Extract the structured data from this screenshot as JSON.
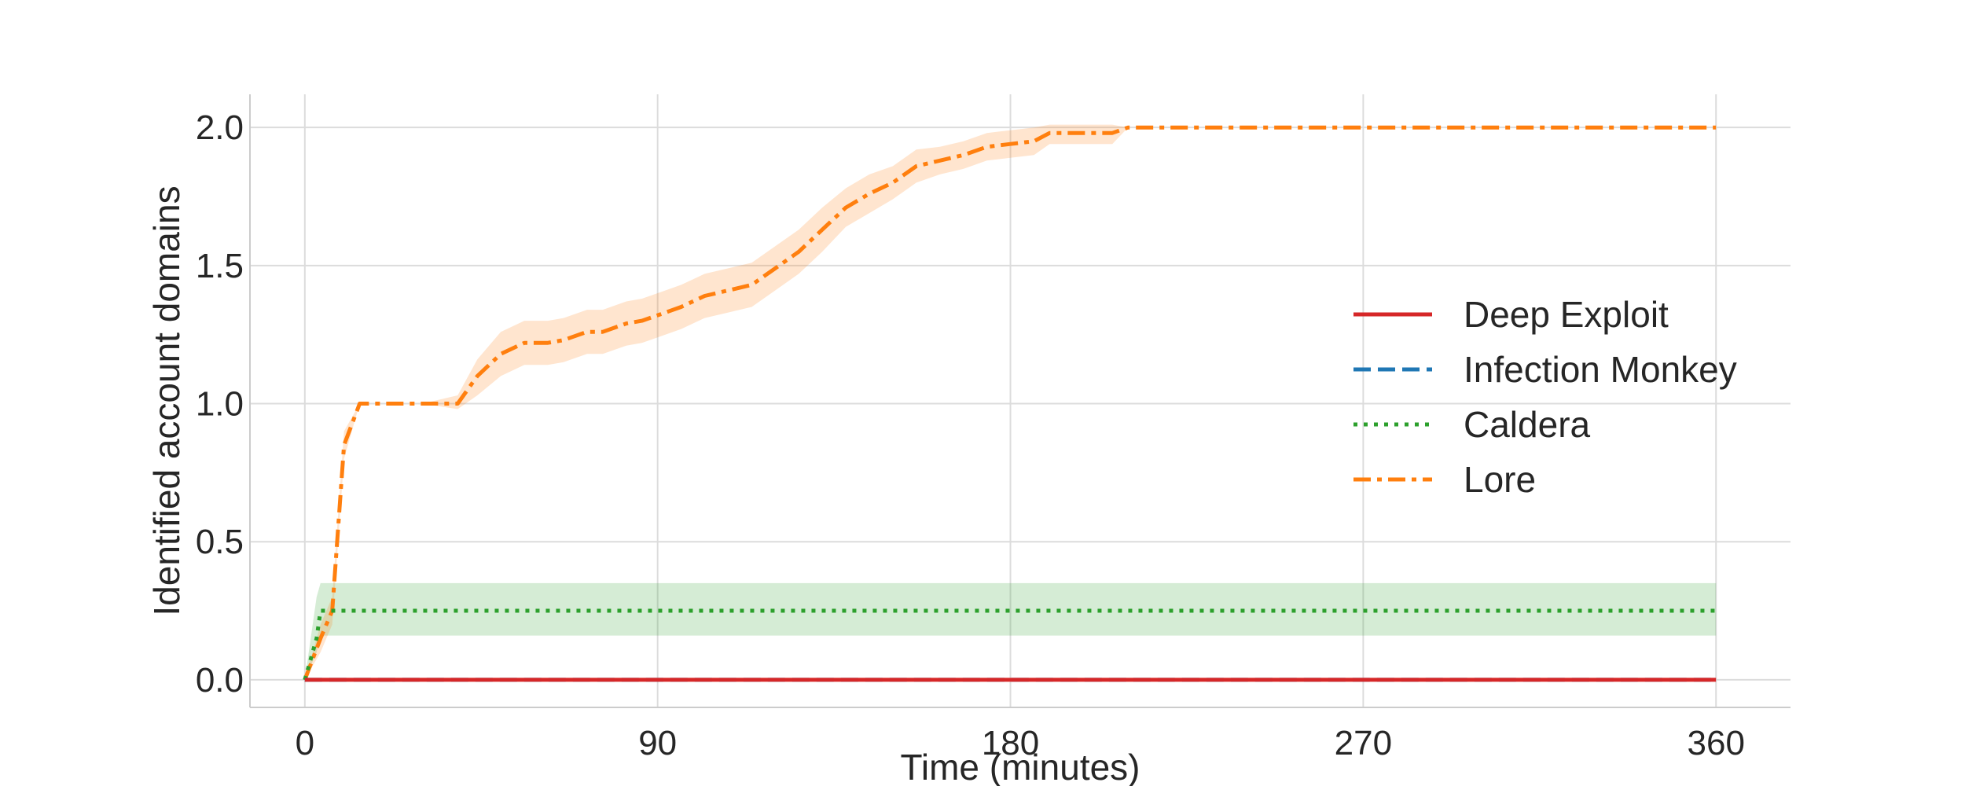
{
  "chart_data": {
    "type": "line",
    "xlabel": "Time (minutes)",
    "ylabel": "Identified account domains",
    "xlim": [
      -14,
      379
    ],
    "ylim": [
      -0.1,
      2.12
    ],
    "xticks": [
      0,
      90,
      180,
      270,
      360
    ],
    "yticks": [
      0.0,
      0.5,
      1.0,
      1.5,
      2.0
    ],
    "xtick_labels": [
      "0",
      "90",
      "180",
      "270",
      "360"
    ],
    "ytick_labels": [
      "0.0",
      "0.5",
      "1.0",
      "1.5",
      "2.0"
    ],
    "grid": true,
    "legend_position": "center-right",
    "series": [
      {
        "name": "Deep Exploit",
        "color": "#d62728",
        "dash": "solid",
        "x": [
          0,
          360
        ],
        "y": [
          0,
          0
        ]
      },
      {
        "name": "Infection Monkey",
        "color": "#1f77b4",
        "dash": "dashed",
        "x": [
          0,
          360
        ],
        "y": [
          0,
          0
        ]
      },
      {
        "name": "Caldera",
        "color": "#2ca02c",
        "dash": "dotted",
        "x": [
          0,
          3,
          4,
          360
        ],
        "y": [
          0,
          0.15,
          0.25,
          0.25
        ],
        "band_lower": [
          0,
          0.1,
          0.16,
          0.16
        ],
        "band_upper": [
          0,
          0.3,
          0.35,
          0.35
        ]
      },
      {
        "name": "Lore",
        "color": "#ff7f0e",
        "dash": "dashdot",
        "x": [
          0,
          4,
          7,
          10,
          14,
          20,
          30,
          39,
          44,
          50,
          56,
          62,
          66,
          72,
          76,
          82,
          86,
          90,
          96,
          102,
          108,
          114,
          120,
          126,
          132,
          138,
          144,
          150,
          156,
          162,
          168,
          174,
          180,
          186,
          190,
          196,
          206,
          210,
          216,
          240,
          270,
          300,
          330,
          360
        ],
        "y": [
          0,
          0.15,
          0.25,
          0.85,
          1.0,
          1.0,
          1.0,
          1.0,
          1.1,
          1.18,
          1.22,
          1.22,
          1.23,
          1.26,
          1.26,
          1.29,
          1.3,
          1.32,
          1.35,
          1.39,
          1.41,
          1.43,
          1.49,
          1.55,
          1.63,
          1.71,
          1.76,
          1.8,
          1.86,
          1.88,
          1.9,
          1.93,
          1.94,
          1.95,
          1.98,
          1.98,
          1.98,
          2.0,
          2.0,
          2.0,
          2.0,
          2.0,
          2.0,
          2.0
        ],
        "band_lower": [
          0,
          0.1,
          0.2,
          0.8,
          1.0,
          1.0,
          1.0,
          0.98,
          1.03,
          1.1,
          1.14,
          1.14,
          1.15,
          1.18,
          1.18,
          1.21,
          1.22,
          1.24,
          1.27,
          1.31,
          1.33,
          1.35,
          1.41,
          1.47,
          1.55,
          1.64,
          1.69,
          1.74,
          1.8,
          1.83,
          1.85,
          1.88,
          1.89,
          1.9,
          1.94,
          1.94,
          1.94,
          2.0,
          2.0,
          2.0,
          2.0,
          2.0,
          2.0,
          2.0
        ],
        "band_upper": [
          0,
          0.2,
          0.3,
          0.9,
          1.0,
          1.0,
          1.0,
          1.03,
          1.16,
          1.26,
          1.3,
          1.3,
          1.31,
          1.34,
          1.34,
          1.37,
          1.38,
          1.4,
          1.43,
          1.47,
          1.49,
          1.51,
          1.57,
          1.63,
          1.71,
          1.78,
          1.83,
          1.86,
          1.92,
          1.93,
          1.95,
          1.98,
          1.99,
          2.0,
          2.01,
          2.01,
          2.01,
          2.0,
          2.0,
          2.0,
          2.0,
          2.0,
          2.0,
          2.0
        ]
      }
    ]
  }
}
